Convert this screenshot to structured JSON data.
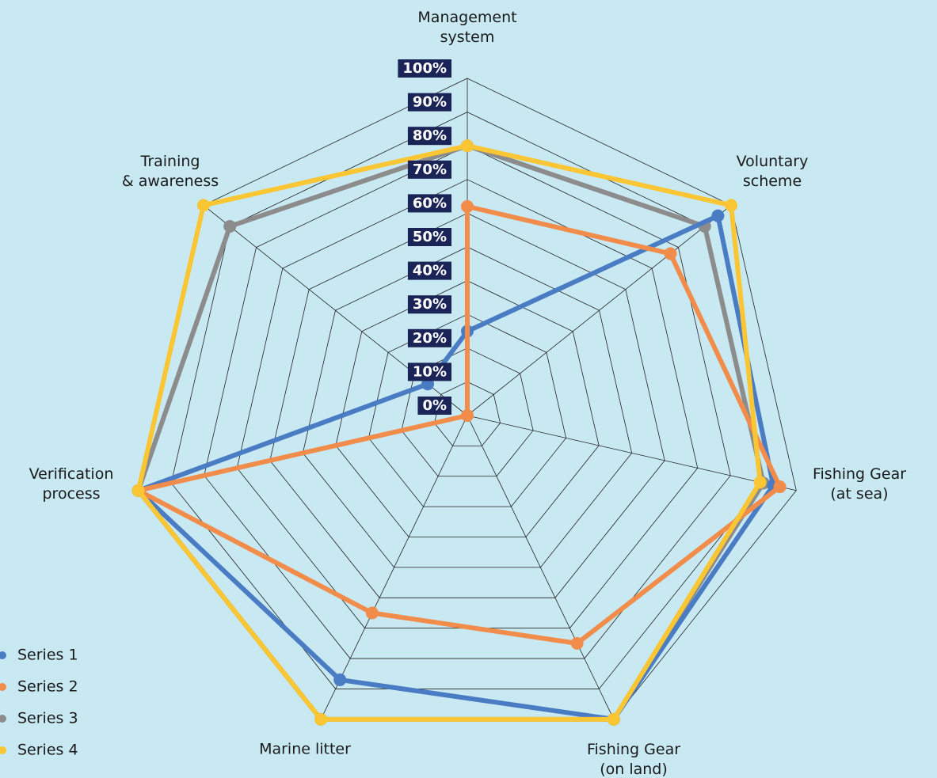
{
  "chart_data": {
    "type": "radar",
    "categories": [
      [
        "Management",
        "system"
      ],
      [
        "Voluntary",
        "scheme"
      ],
      [
        "Fishing Gear",
        "(at sea)"
      ],
      [
        "Fishing Gear",
        "(on land)"
      ],
      [
        "Marine litter"
      ],
      [
        "Verification",
        "process"
      ],
      [
        "Training",
        "& awareness"
      ]
    ],
    "series": [
      {
        "name": "Series 1",
        "color": "#4a7cc4",
        "values": [
          25,
          95,
          93,
          100,
          87,
          100,
          15
        ]
      },
      {
        "name": "Series 2",
        "color": "#f28c4a",
        "values": [
          62,
          77,
          95,
          75,
          65,
          100,
          0
        ]
      },
      {
        "name": "Series 3",
        "color": "#8c8c8c",
        "values": [
          80,
          90,
          90,
          100,
          100,
          100,
          90
        ]
      },
      {
        "name": "Series 4",
        "color": "#fbc634",
        "values": [
          80,
          100,
          89,
          100,
          100,
          100,
          100
        ]
      }
    ],
    "ylim": [
      0,
      100
    ],
    "yticks": [
      {
        "value": 0,
        "label": "0%"
      },
      {
        "value": 10,
        "label": "10%"
      },
      {
        "value": 20,
        "label": "20%"
      },
      {
        "value": 30,
        "label": "30%"
      },
      {
        "value": 40,
        "label": "40%"
      },
      {
        "value": 50,
        "label": "50%"
      },
      {
        "value": 60,
        "label": "60%"
      },
      {
        "value": 70,
        "label": "70%"
      },
      {
        "value": 80,
        "label": "80%"
      },
      {
        "value": 90,
        "label": "90%"
      },
      {
        "value": 100,
        "label": "100%"
      }
    ],
    "grid": true,
    "legend": "bottom-left"
  }
}
